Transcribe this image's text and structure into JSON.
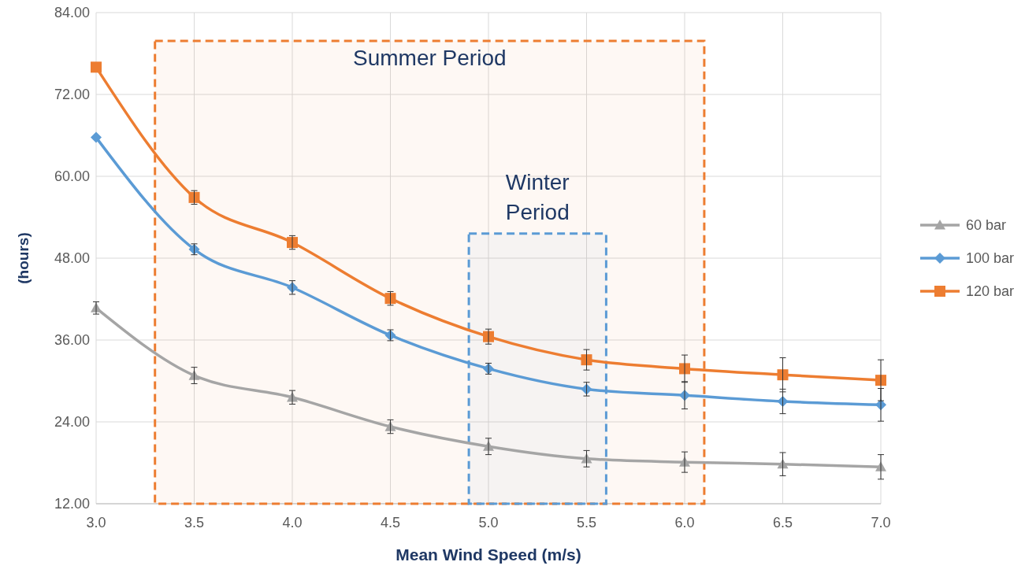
{
  "chart_data": {
    "type": "line",
    "xlabel": "Mean Wind Speed (m/s)",
    "ylabel": "(hours)",
    "x": [
      3.0,
      3.5,
      4.0,
      4.5,
      5.0,
      5.5,
      6.0,
      6.5,
      7.0
    ],
    "xlim": [
      3.0,
      7.0
    ],
    "xticks": [
      {
        "value": 3,
        "label": "3.0"
      },
      {
        "value": 3.5,
        "label": "3.5"
      },
      {
        "value": 4,
        "label": "4.0"
      },
      {
        "value": 4.5,
        "label": "4.5"
      },
      {
        "value": 5,
        "label": "5.0"
      },
      {
        "value": 5.5,
        "label": "5.5"
      },
      {
        "value": 6,
        "label": "6.0"
      },
      {
        "value": 6.5,
        "label": "6.5"
      },
      {
        "value": 7,
        "label": "7.0"
      }
    ],
    "ylim": [
      12,
      84
    ],
    "yticks": [
      {
        "value": 12,
        "label": "12.00"
      },
      {
        "value": 24,
        "label": "24.00"
      },
      {
        "value": 36,
        "label": "36.00"
      },
      {
        "value": 48,
        "label": "48.00"
      },
      {
        "value": 60,
        "label": "60.00"
      },
      {
        "value": 72,
        "label": "72.00"
      },
      {
        "value": 84,
        "label": "84.00"
      }
    ],
    "grid": true,
    "legend": "right",
    "line_style": "solid",
    "series": [
      {
        "name": "60 bar",
        "color": "#a5a5a5",
        "marker": "triangle",
        "values": [
          40.7,
          30.8,
          27.6,
          23.3,
          20.4,
          18.6,
          18.1,
          17.8,
          17.4
        ],
        "errors": [
          0.9,
          1.2,
          1.0,
          1.0,
          1.2,
          1.2,
          1.5,
          1.7,
          1.8
        ]
      },
      {
        "name": "100 bar",
        "color": "#5b9bd5",
        "marker": "diamond",
        "values": [
          65.7,
          49.3,
          43.7,
          36.7,
          31.8,
          28.8,
          27.9,
          27.0,
          26.5
        ],
        "errors": [
          null,
          0.8,
          1.0,
          0.8,
          0.8,
          1.0,
          2.0,
          1.8,
          2.4
        ]
      },
      {
        "name": "120 bar",
        "color": "#ed7d31",
        "marker": "square",
        "values": [
          76.0,
          56.9,
          50.3,
          42.1,
          36.5,
          33.1,
          31.8,
          30.9,
          30.1
        ],
        "errors": [
          null,
          1.0,
          1.0,
          1.0,
          1.1,
          1.5,
          2.0,
          2.5,
          3.0
        ]
      }
    ],
    "bands": [
      {
        "axis": "x",
        "from": 3.3,
        "to": 6.1,
        "label": "Summer Period",
        "color": "#ed7d31"
      },
      {
        "axis": "x",
        "from": 4.9,
        "to": 5.6,
        "label": "Winter\nPeriod",
        "color": "#5b9bd5"
      }
    ]
  }
}
